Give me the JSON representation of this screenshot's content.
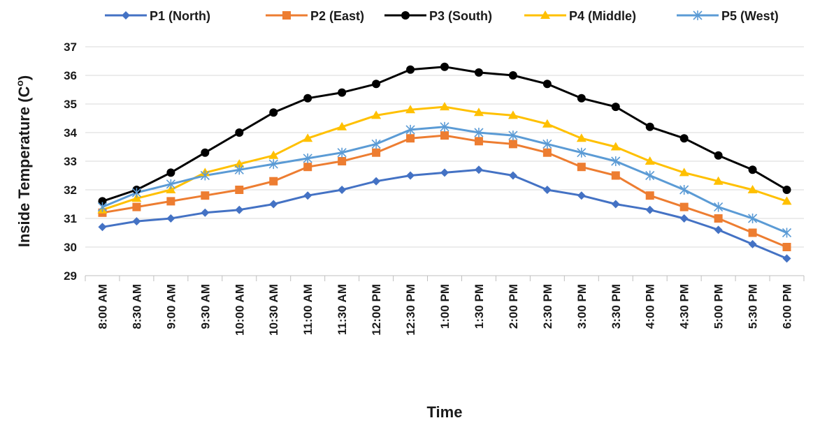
{
  "chart_data": {
    "type": "line",
    "xlabel": "Time",
    "ylabel": "Inside Temperature (C",
    "ylabel_sup": "o",
    "ylabel_end": ")",
    "ylim": [
      29,
      37
    ],
    "yticks": [
      "29",
      "30",
      "31",
      "32",
      "33",
      "34",
      "35",
      "36",
      "37"
    ],
    "grid": "horizontal",
    "legend_position": "top",
    "categories": [
      "8:00 AM",
      "8:30 AM",
      "9:00 AM",
      "9:30 AM",
      "10:00 AM",
      "10:30 AM",
      "11:00 AM",
      "11:30 AM",
      "12:00 PM",
      "12:30 PM",
      "1:00 PM",
      "1:30 PM",
      "2:00 PM",
      "2:30 PM",
      "3:00 PM",
      "3:30 PM",
      "4:00 PM",
      "4:30 PM",
      "5:00 PM",
      "5:30 PM",
      "6:00 PM"
    ],
    "series": [
      {
        "name": "P1 (North)",
        "color": "#4472C4",
        "marker": "diamond",
        "values": [
          30.7,
          30.9,
          31.0,
          31.2,
          31.3,
          31.5,
          31.8,
          32.0,
          32.3,
          32.5,
          32.6,
          32.7,
          32.5,
          32.0,
          31.8,
          31.5,
          31.3,
          31.0,
          30.6,
          30.1,
          29.6
        ]
      },
      {
        "name": "P2 (East)",
        "color": "#ED7D31",
        "marker": "square",
        "values": [
          31.2,
          31.4,
          31.6,
          31.8,
          32.0,
          32.3,
          32.8,
          33.0,
          33.3,
          33.8,
          33.9,
          33.7,
          33.6,
          33.3,
          32.8,
          32.5,
          31.8,
          31.4,
          31.0,
          30.5,
          30.0
        ]
      },
      {
        "name": "P3 (South)",
        "color": "#000000",
        "marker": "circle",
        "values": [
          31.6,
          32.0,
          32.6,
          33.3,
          34.0,
          34.7,
          35.2,
          35.4,
          35.7,
          36.2,
          36.3,
          36.1,
          36.0,
          35.7,
          35.2,
          34.9,
          34.2,
          33.8,
          33.2,
          32.7,
          32.0
        ]
      },
      {
        "name": "P4 (Middle)",
        "color": "#FFC000",
        "marker": "triangle",
        "values": [
          31.3,
          31.7,
          32.0,
          32.6,
          32.9,
          33.2,
          33.8,
          34.2,
          34.6,
          34.8,
          34.9,
          34.7,
          34.6,
          34.3,
          33.8,
          33.5,
          33.0,
          32.6,
          32.3,
          32.0,
          31.6
        ]
      },
      {
        "name": "P5 (West)",
        "color": "#5B9BD5",
        "marker": "star",
        "values": [
          31.4,
          31.9,
          32.2,
          32.5,
          32.7,
          32.9,
          33.1,
          33.3,
          33.6,
          34.1,
          34.2,
          34.0,
          33.9,
          33.6,
          33.3,
          33.0,
          32.5,
          32.0,
          31.4,
          31.0,
          30.5
        ]
      }
    ]
  }
}
